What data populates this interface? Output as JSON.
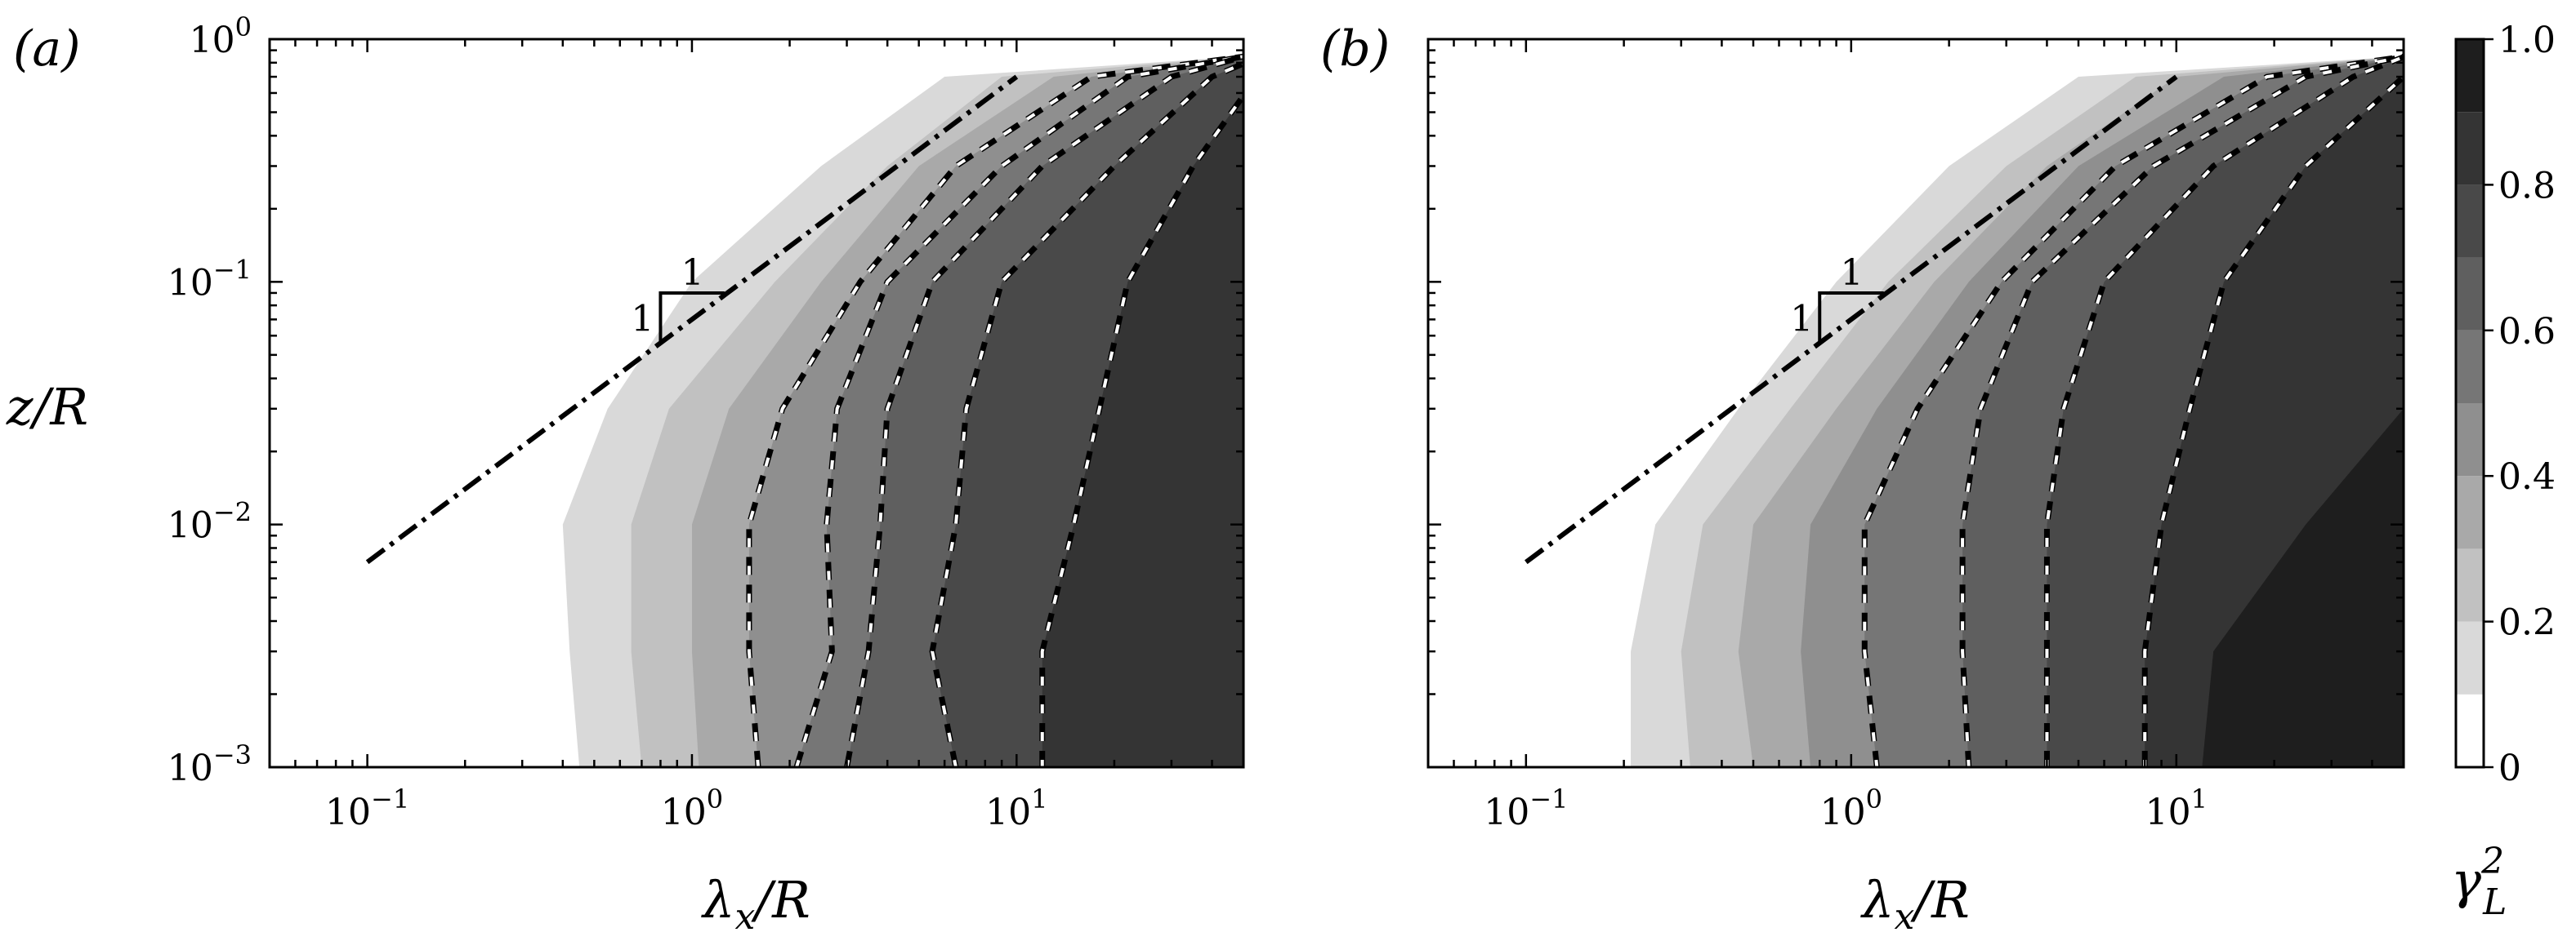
{
  "chart_data": [
    {
      "type": "heatmap",
      "panel_label": "(a)",
      "xlabel": "λx/R",
      "ylabel": "z/R",
      "xscale": "log",
      "yscale": "log",
      "xlim": [
        0.05,
        50
      ],
      "ylim": [
        0.001,
        1
      ],
      "x_ticks": [
        {
          "value": 0.1,
          "base": "10",
          "exp": "−1"
        },
        {
          "value": 1,
          "base": "10",
          "exp": "0"
        },
        {
          "value": 10,
          "base": "10",
          "exp": "1"
        }
      ],
      "y_ticks": [
        {
          "value": 1,
          "base": "10",
          "exp": "0"
        },
        {
          "value": 0.1,
          "base": "10",
          "exp": "−1"
        },
        {
          "value": 0.01,
          "base": "10",
          "exp": "−2"
        },
        {
          "value": 0.001,
          "base": "10",
          "exp": "−3"
        }
      ],
      "slope_line": {
        "x": [
          0.1,
          10
        ],
        "y": [
          0.007,
          0.7
        ],
        "style": "dash-dot",
        "run_label": "1",
        "rise_label": "1"
      },
      "contour_levels": [
        0.1,
        0.2,
        0.3,
        0.4,
        0.5,
        0.6,
        0.7,
        0.8,
        0.9,
        1.0
      ],
      "contour_boundaries_x_at_z": {
        "z": [
          0.001,
          0.003,
          0.01,
          0.03,
          0.1,
          0.3,
          0.7
        ],
        "levels": [
          {
            "value": 0.1,
            "x": [
              0.45,
              0.42,
              0.4,
              0.55,
              1.0,
              2.5,
              6.0
            ]
          },
          {
            "value": 0.2,
            "x": [
              0.7,
              0.65,
              0.65,
              0.85,
              1.8,
              4.0,
              9.0
            ]
          },
          {
            "value": 0.3,
            "x": [
              1.05,
              1.0,
              1.0,
              1.3,
              2.5,
              5.0,
              13.0
            ]
          },
          {
            "value": 0.4,
            "x": [
              1.6,
              1.5,
              1.5,
              1.9,
              3.3,
              6.5,
              17.0
            ]
          },
          {
            "value": 0.5,
            "x": [
              2.1,
              2.7,
              2.6,
              2.8,
              4.0,
              9.0,
              22.0
            ]
          },
          {
            "value": 0.6,
            "x": [
              3.0,
              3.5,
              3.8,
              4.0,
              5.5,
              12.0,
              30.0
            ]
          },
          {
            "value": 0.7,
            "x": [
              6.5,
              5.5,
              6.5,
              7.0,
              9.0,
              20.0,
              40.0
            ]
          },
          {
            "value": 0.8,
            "x": [
              12.0,
              12.0,
              15.0,
              18.0,
              22.0,
              35.0,
              55.0
            ]
          }
        ]
      },
      "dashed_contours": [
        0.4,
        0.5,
        0.6,
        0.7,
        0.8
      ]
    },
    {
      "type": "heatmap",
      "panel_label": "(b)",
      "xlabel": "λx/R",
      "ylabel": "",
      "xscale": "log",
      "yscale": "log",
      "xlim": [
        0.05,
        50
      ],
      "ylim": [
        0.001,
        1
      ],
      "x_ticks": [
        {
          "value": 0.1,
          "base": "10",
          "exp": "−1"
        },
        {
          "value": 1,
          "base": "10",
          "exp": "0"
        },
        {
          "value": 10,
          "base": "10",
          "exp": "1"
        }
      ],
      "slope_line": {
        "x": [
          0.1,
          10
        ],
        "y": [
          0.007,
          0.7
        ],
        "style": "dash-dot",
        "run_label": "1",
        "rise_label": "1"
      },
      "contour_levels": [
        0.1,
        0.2,
        0.3,
        0.4,
        0.5,
        0.6,
        0.7,
        0.8,
        0.9,
        1.0
      ],
      "contour_boundaries_x_at_z": {
        "z": [
          0.001,
          0.003,
          0.01,
          0.03,
          0.1,
          0.3,
          0.7
        ],
        "levels": [
          {
            "value": 0.1,
            "x": [
              0.21,
              0.21,
              0.25,
              0.45,
              0.9,
              2.0,
              5.0
            ]
          },
          {
            "value": 0.2,
            "x": [
              0.32,
              0.3,
              0.35,
              0.65,
              1.3,
              3.0,
              7.5
            ]
          },
          {
            "value": 0.3,
            "x": [
              0.5,
              0.45,
              0.5,
              0.9,
              1.8,
              4.0,
              10.0
            ]
          },
          {
            "value": 0.4,
            "x": [
              0.75,
              0.7,
              0.75,
              1.2,
              2.3,
              5.0,
              14.0
            ]
          },
          {
            "value": 0.5,
            "x": [
              1.2,
              1.1,
              1.1,
              1.6,
              2.9,
              6.5,
              19.0
            ]
          },
          {
            "value": 0.6,
            "x": [
              2.3,
              2.2,
              2.2,
              2.5,
              3.6,
              8.5,
              25.0
            ]
          },
          {
            "value": 0.7,
            "x": [
              4.0,
              4.0,
              4.0,
              4.5,
              6.0,
              13.0,
              35.0
            ]
          },
          {
            "value": 0.8,
            "x": [
              8.0,
              8.0,
              9.0,
              11.0,
              14.0,
              25.0,
              50.0
            ]
          },
          {
            "value": 0.9,
            "x": [
              12.0,
              13.0,
              25.0,
              50.0,
              50.0,
              50.0,
              50.0
            ]
          }
        ]
      },
      "dashed_contours": [
        0.5,
        0.6,
        0.7,
        0.8
      ]
    }
  ],
  "colorbar": {
    "label": "γ",
    "label_sup": "2",
    "label_sub": "L",
    "levels": [
      0,
      0.1,
      0.2,
      0.3,
      0.4,
      0.5,
      0.6,
      0.7,
      0.8,
      0.9,
      1.0
    ],
    "tick_values": [
      0,
      0.2,
      0.4,
      0.6,
      0.8,
      1.0
    ],
    "tick_labels": [
      "0",
      "0.2",
      "0.4",
      "0.6",
      "0.8",
      "1.0"
    ],
    "colors": [
      "#ffffff",
      "#d9d9d9",
      "#c1c1c1",
      "#a9a9a9",
      "#8f8f8f",
      "#767676",
      "#5f5f5f",
      "#494949",
      "#343434",
      "#1e1e1e",
      "#000000"
    ]
  }
}
